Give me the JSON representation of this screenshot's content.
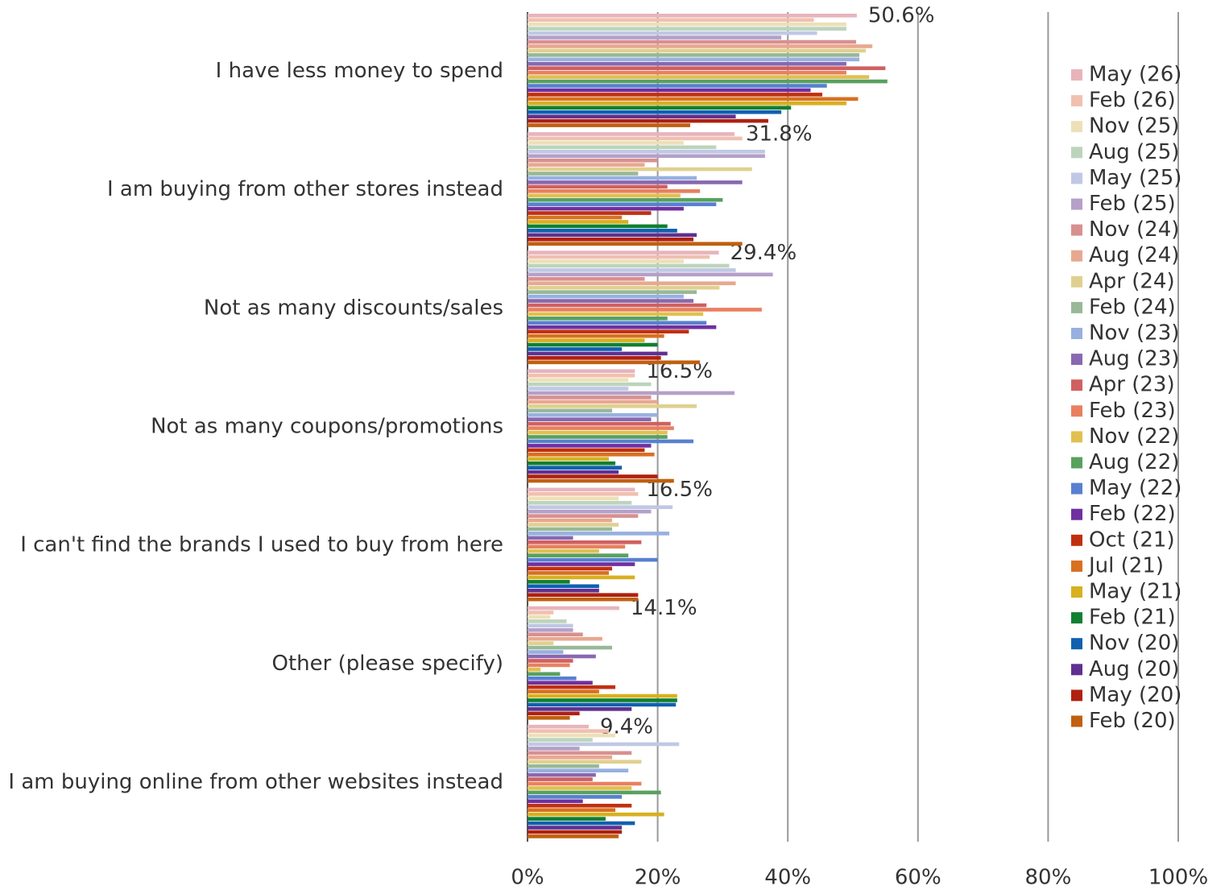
{
  "chart_data": {
    "type": "barh",
    "categories": [
      "I have less money to spend",
      "I am buying from other stores instead",
      "Not as many discounts/sales",
      "Not as many coupons/promotions",
      "I can't find the brands I used to buy from here",
      "Other (please specify)",
      "I am buying online from other websites instead"
    ],
    "series": [
      {
        "name": "May (26)",
        "color": "#e8b4bc",
        "values": [
          50.6,
          31.8,
          29.4,
          16.5,
          16.5,
          14.1,
          9.4
        ],
        "value_labels": [
          "50.6%",
          "31.8%",
          "29.4%",
          "16.5%",
          "16.5%",
          "14.1%",
          "9.4%"
        ]
      },
      {
        "name": "Feb (26)",
        "color": "#f0c0b0",
        "values": [
          44,
          33,
          28,
          16.5,
          17,
          4,
          12.5
        ]
      },
      {
        "name": "Nov (25)",
        "color": "#ede0b8",
        "values": [
          49,
          24,
          24,
          15.5,
          14,
          3.5,
          13.5
        ]
      },
      {
        "name": "Aug (25)",
        "color": "#bcd4bc",
        "values": [
          49,
          29,
          31,
          19,
          16,
          6,
          10
        ]
      },
      {
        "name": "May (25)",
        "color": "#c0c8e4",
        "values": [
          44.5,
          36.5,
          32,
          15.5,
          22.3,
          7,
          23.3
        ]
      },
      {
        "name": "Feb (25)",
        "color": "#b4a0c8",
        "values": [
          39,
          36.5,
          37.7,
          31.8,
          19,
          7,
          8
        ]
      },
      {
        "name": "Nov (24)",
        "color": "#d89090",
        "values": [
          50.5,
          20,
          18,
          19,
          17,
          8.5,
          16
        ]
      },
      {
        "name": "Aug (24)",
        "color": "#e8a890",
        "values": [
          53,
          18,
          32,
          20,
          13,
          11.5,
          13
        ]
      },
      {
        "name": "Apr (24)",
        "color": "#e0d090",
        "values": [
          52,
          34.5,
          29.5,
          26,
          14,
          4,
          17.5
        ]
      },
      {
        "name": "Feb (24)",
        "color": "#98b898",
        "values": [
          51,
          17,
          26,
          13,
          13,
          13,
          11
        ]
      },
      {
        "name": "Nov (23)",
        "color": "#98b0e0",
        "values": [
          51,
          26,
          24,
          20,
          21.8,
          5.5,
          15.5
        ]
      },
      {
        "name": "Aug (23)",
        "color": "#8868b0",
        "values": [
          49,
          33,
          25.5,
          19,
          7,
          10.5,
          10.5
        ]
      },
      {
        "name": "Apr (23)",
        "color": "#d06060",
        "values": [
          55,
          21.5,
          27.5,
          22,
          17.5,
          7,
          10
        ]
      },
      {
        "name": "Feb (23)",
        "color": "#e88060",
        "values": [
          49,
          26.5,
          36,
          22.5,
          15,
          6.5,
          17.5
        ]
      },
      {
        "name": "Nov (22)",
        "color": "#e0c050",
        "values": [
          52.5,
          23.5,
          27,
          21.5,
          11,
          2,
          16
        ]
      },
      {
        "name": "Aug (22)",
        "color": "#58a060",
        "values": [
          55.3,
          30,
          21.5,
          21.5,
          15.5,
          5,
          20.5
        ]
      },
      {
        "name": "May (22)",
        "color": "#5880d0",
        "values": [
          46,
          29,
          27.5,
          25.5,
          20,
          7.5,
          14.5
        ]
      },
      {
        "name": "Feb (22)",
        "color": "#7030a0",
        "values": [
          43.5,
          24,
          29,
          19,
          16.5,
          10,
          8.5
        ]
      },
      {
        "name": "Oct (21)",
        "color": "#c03010",
        "values": [
          45.3,
          19,
          24.8,
          18,
          13,
          13.5,
          16
        ]
      },
      {
        "name": "Jul (21)",
        "color": "#d87020",
        "values": [
          50.8,
          14.5,
          21,
          19.5,
          12.5,
          11,
          13.5
        ]
      },
      {
        "name": "May (21)",
        "color": "#d8b020",
        "values": [
          49,
          15.5,
          18,
          12.5,
          16.5,
          23,
          21
        ]
      },
      {
        "name": "Feb (21)",
        "color": "#108030",
        "values": [
          40.5,
          21.5,
          20,
          13.5,
          6.5,
          23,
          12
        ]
      },
      {
        "name": "Nov (20)",
        "color": "#1060b0",
        "values": [
          39,
          23,
          14.5,
          14.5,
          11,
          22.8,
          16.5
        ]
      },
      {
        "name": "Aug (20)",
        "color": "#603090",
        "values": [
          32,
          26,
          21.5,
          14,
          11,
          16,
          14.5
        ]
      },
      {
        "name": "May (20)",
        "color": "#b02010",
        "values": [
          37,
          25.5,
          20.5,
          20,
          17,
          8,
          14.5
        ]
      },
      {
        "name": "Feb (20)",
        "color": "#c06010",
        "values": [
          25,
          33,
          26.5,
          22.5,
          17,
          6.5,
          14
        ]
      }
    ],
    "xlim": [
      0,
      100
    ],
    "xticks": [
      {
        "value": 0,
        "label": "0%"
      },
      {
        "value": 20,
        "label": "20%"
      },
      {
        "value": 40,
        "label": "40%"
      },
      {
        "value": 60,
        "label": "60%"
      },
      {
        "value": 80,
        "label": "80%"
      },
      {
        "value": 100,
        "label": "100%"
      }
    ],
    "grid": true,
    "legend": "right"
  }
}
